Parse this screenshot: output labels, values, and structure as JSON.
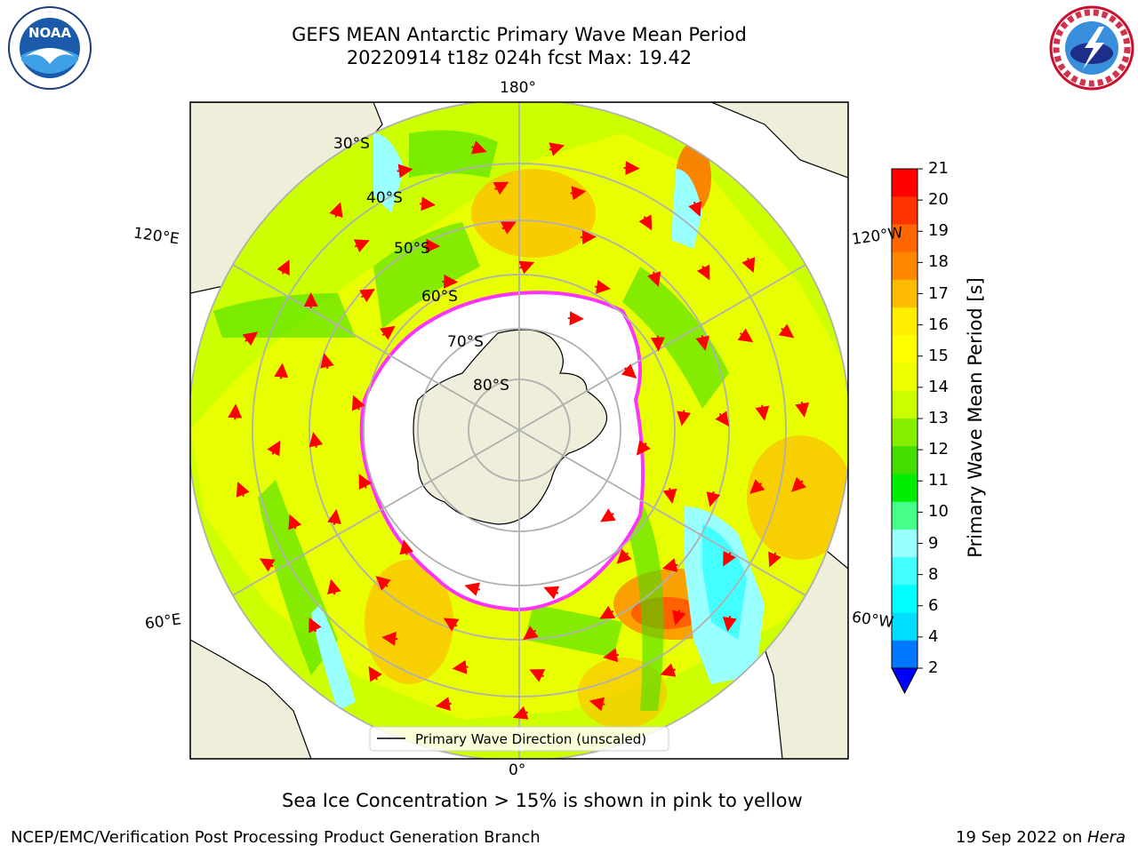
{
  "title": {
    "line1": "GEFS MEAN Antarctic Primary Wave Mean Period",
    "line2": "20220914 t18z 024h fcst   Max: 19.42"
  },
  "map": {
    "projection": "south-polar-stereographic",
    "longitude_labels": [
      "180°",
      "120°E",
      "120°W",
      "60°E",
      "60°W",
      "0°"
    ],
    "latitude_labels": [
      "30°S",
      "40°S",
      "50°S",
      "60°S",
      "70°S",
      "80°S"
    ],
    "legend": "Primary Wave Direction (unscaled)",
    "colors": {
      "land": "#efeedb",
      "ocean_period_mid": "#ccff00",
      "sea_ice_edge": "#ff33ff",
      "arrows": "#ff0000",
      "grid": "#b0b0b0"
    }
  },
  "colorbar": {
    "label": "Primary Wave Mean Period [s]",
    "ticks": [
      "21",
      "20",
      "19",
      "18",
      "17",
      "16",
      "15",
      "14",
      "13",
      "12",
      "11",
      "10",
      "9",
      "8",
      "6",
      "4",
      "2"
    ],
    "colors": [
      "#ff0000",
      "#ff3300",
      "#ff6600",
      "#ff8800",
      "#ffbb00",
      "#ffee00",
      "#ffff00",
      "#eeff00",
      "#ccff00",
      "#88ee00",
      "#44dd00",
      "#00ee00",
      "#44ff88",
      "#99ffff",
      "#44ffff",
      "#00ffff",
      "#00ddff",
      "#0077ff",
      "#0000ff"
    ]
  },
  "footer_note": "Sea Ice Concentration > 15% is shown in pink to yellow",
  "credit_left": "NCEP/EMC/Verification Post Processing Product Generation Branch",
  "credit_right_text": "19 Sep 2022 on ",
  "credit_right_italic": "Hera",
  "logos": {
    "noaa_text": "NOAA",
    "nws_text": "NATIONAL WEATHER SERVICE"
  }
}
